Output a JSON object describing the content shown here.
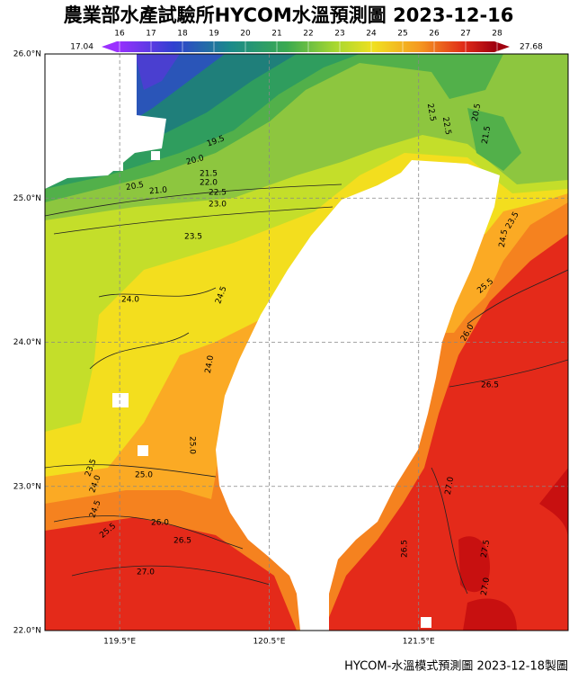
{
  "header": {
    "title": "農業部水產試驗所HYCOM水溫預測圖 2023-12-16"
  },
  "colorbar": {
    "min": 17.04,
    "max": 27.68,
    "ticks": [
      16,
      17,
      18,
      19,
      20,
      21,
      22,
      23,
      24,
      25,
      26,
      27,
      28
    ]
  },
  "axes": {
    "lat_ticks": [
      {
        "value": 26,
        "label": "26.0°N"
      },
      {
        "value": 25,
        "label": "25.0°N"
      },
      {
        "value": 24,
        "label": "24.0°N"
      },
      {
        "value": 23,
        "label": "23.0°N"
      },
      {
        "value": 22,
        "label": "22.0°N"
      }
    ],
    "lon_ticks": [
      {
        "value": 119.5,
        "label": "119.5°E"
      },
      {
        "value": 120.5,
        "label": "120.5°E"
      },
      {
        "value": 121.5,
        "label": "121.5°E"
      }
    ]
  },
  "contour_labels": [
    "19.5",
    "20.0",
    "20.5",
    "21.0",
    "21.5",
    "22.0",
    "22.5",
    "23.0",
    "23.5",
    "24.0",
    "24.5",
    "24.0",
    "25.0",
    "25.0",
    "24.5",
    "24.0",
    "23.5",
    "25.5",
    "26.0",
    "26.5",
    "27.0",
    "26.5",
    "26.0",
    "25.5",
    "27.0",
    "26.5",
    "27.5",
    "27.0",
    "22.5",
    "22.5",
    "20.5",
    "21.5",
    "24.5",
    "23.5"
  ],
  "footer": {
    "text": "HYCOM-水溫模式預測圖 2023-12-18製圖"
  }
}
